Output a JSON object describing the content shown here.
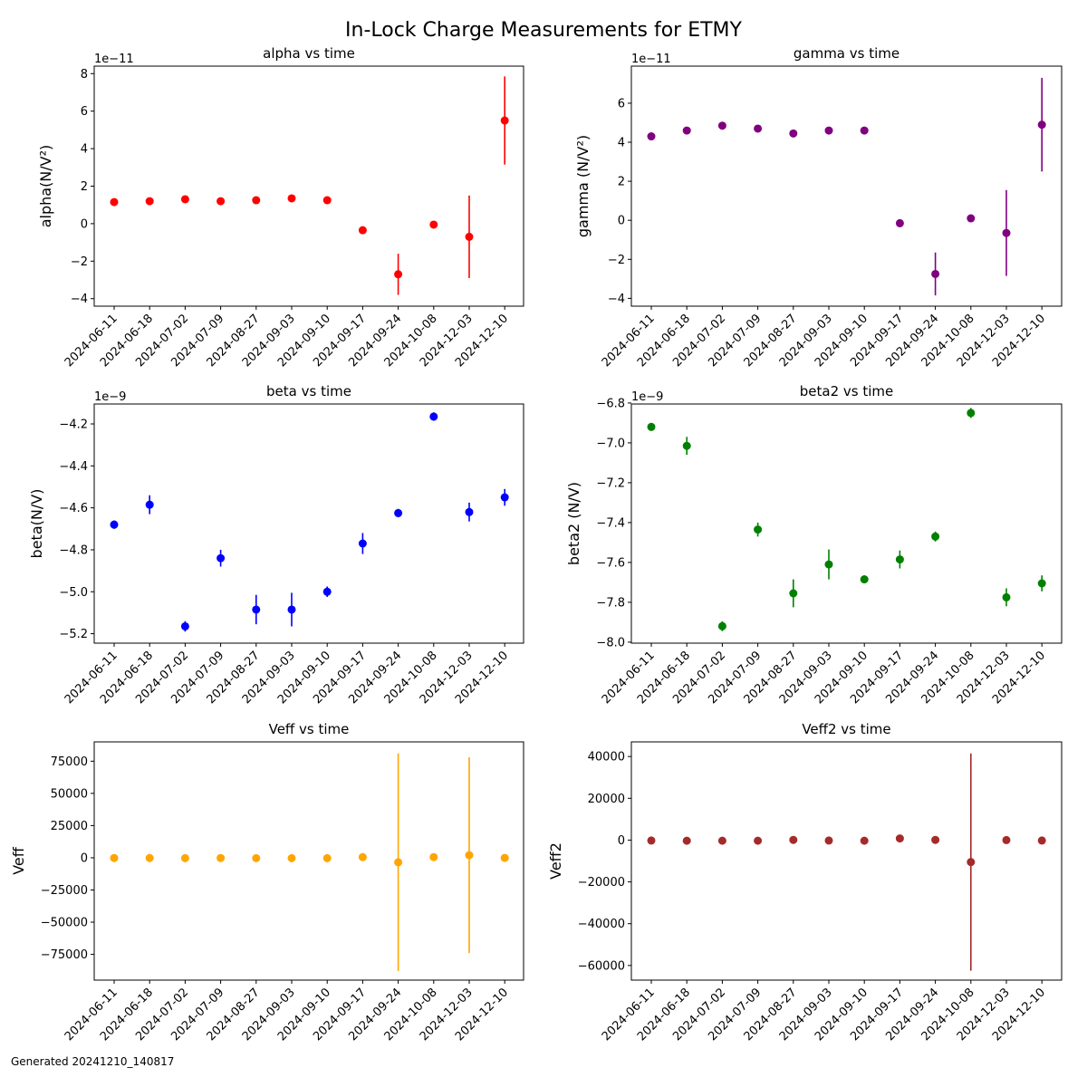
{
  "figure": {
    "title": "In-Lock Charge Measurements for ETMY",
    "footer": "Generated 20241210_140817"
  },
  "chart_data": [
    {
      "type": "scatter",
      "title": "alpha vs time",
      "ylabel": "alpha(N/V²)",
      "xlabel": "",
      "color": "#ff0000",
      "offset_text": "1e−11",
      "x": [
        "2024-06-11",
        "2024-06-18",
        "2024-07-02",
        "2024-07-09",
        "2024-08-27",
        "2024-09-03",
        "2024-09-10",
        "2024-09-17",
        "2024-09-24",
        "2024-10-08",
        "2024-12-03",
        "2024-12-10"
      ],
      "values": [
        1.15,
        1.2,
        1.3,
        1.2,
        1.25,
        1.35,
        1.25,
        -0.35,
        -2.7,
        -0.05,
        -0.7,
        5.5
      ],
      "errors": [
        0.05,
        0.05,
        0.05,
        0.05,
        0.05,
        0.05,
        0.05,
        0.15,
        1.1,
        0.1,
        2.2,
        2.35
      ],
      "ylim": [
        -4.4,
        8.4
      ],
      "yticks": [
        -4,
        -2,
        0,
        2,
        4,
        6,
        8
      ],
      "grid": false
    },
    {
      "type": "scatter",
      "title": "gamma vs time",
      "ylabel": "gamma (N/V²)",
      "xlabel": "",
      "color": "#800080",
      "offset_text": "1e−11",
      "x": [
        "2024-06-11",
        "2024-06-18",
        "2024-07-02",
        "2024-07-09",
        "2024-08-27",
        "2024-09-03",
        "2024-09-10",
        "2024-09-17",
        "2024-09-24",
        "2024-10-08",
        "2024-12-03",
        "2024-12-10"
      ],
      "values": [
        4.3,
        4.6,
        4.85,
        4.7,
        4.45,
        4.6,
        4.6,
        -0.15,
        -2.75,
        0.1,
        -0.65,
        4.9
      ],
      "errors": [
        0.05,
        0.05,
        0.05,
        0.05,
        0.05,
        0.05,
        0.05,
        0.2,
        1.1,
        0.1,
        2.2,
        2.4
      ],
      "ylim": [
        -4.4,
        7.9
      ],
      "yticks": [
        -4,
        -2,
        0,
        2,
        4,
        6
      ],
      "grid": false
    },
    {
      "type": "scatter",
      "title": "beta vs time",
      "ylabel": "beta(N/V)",
      "xlabel": "",
      "color": "#0000ff",
      "offset_text": "1e−9",
      "x": [
        "2024-06-11",
        "2024-06-18",
        "2024-07-02",
        "2024-07-09",
        "2024-08-27",
        "2024-09-03",
        "2024-09-10",
        "2024-09-17",
        "2024-09-24",
        "2024-10-08",
        "2024-12-03",
        "2024-12-10"
      ],
      "values": [
        -4.68,
        -4.585,
        -5.165,
        -4.84,
        -5.085,
        -5.085,
        -5.0,
        -4.77,
        -4.625,
        -4.165,
        -4.62,
        -4.55
      ],
      "errors": [
        0.02,
        0.045,
        0.025,
        0.04,
        0.07,
        0.08,
        0.025,
        0.05,
        0.02,
        0.02,
        0.045,
        0.04
      ],
      "ylim": [
        -5.245,
        -4.105
      ],
      "yticks": [
        -5.2,
        -5.0,
        -4.8,
        -4.6,
        -4.4,
        -4.2
      ],
      "ytick_labels": [
        "−5.2",
        "−5.0",
        "−4.8",
        "−4.6",
        "−4.4",
        "−4.2"
      ],
      "grid": false
    },
    {
      "type": "scatter",
      "title": "beta2 vs time",
      "ylabel": "beta2 (N/V)",
      "xlabel": "",
      "color": "#008000",
      "offset_text": "1e−9",
      "x": [
        "2024-06-11",
        "2024-06-18",
        "2024-07-02",
        "2024-07-09",
        "2024-08-27",
        "2024-09-03",
        "2024-09-10",
        "2024-09-17",
        "2024-09-24",
        "2024-10-08",
        "2024-12-03",
        "2024-12-10"
      ],
      "values": [
        -6.92,
        -7.015,
        -7.92,
        -7.435,
        -7.755,
        -7.61,
        -7.685,
        -7.585,
        -7.47,
        -6.85,
        -7.775,
        -7.705
      ],
      "errors": [
        0.02,
        0.045,
        0.025,
        0.035,
        0.07,
        0.075,
        0.02,
        0.045,
        0.025,
        0.025,
        0.045,
        0.04
      ],
      "ylim": [
        -8.005,
        -6.805
      ],
      "yticks": [
        -8.0,
        -7.8,
        -7.6,
        -7.4,
        -7.2,
        -7.0,
        -6.8
      ],
      "ytick_labels": [
        "−8.0",
        "−7.8",
        "−7.6",
        "−7.4",
        "−7.2",
        "−7.0",
        "−6.8"
      ],
      "grid": false
    },
    {
      "type": "scatter",
      "title": "Veff vs time",
      "ylabel": "Veff",
      "xlabel": "",
      "color": "#ffa500",
      "offset_text": "",
      "x": [
        "2024-06-11",
        "2024-06-18",
        "2024-07-02",
        "2024-07-09",
        "2024-08-27",
        "2024-09-03",
        "2024-09-10",
        "2024-09-17",
        "2024-09-24",
        "2024-10-08",
        "2024-12-03",
        "2024-12-10"
      ],
      "values": [
        -200,
        -200,
        -300,
        -200,
        -300,
        -300,
        -300,
        500,
        -3500,
        500,
        2000,
        -100
      ],
      "errors": [
        0,
        0,
        0,
        0,
        0,
        0,
        0,
        0,
        84500,
        0,
        76000,
        0
      ],
      "ylim": [
        -95000,
        90000
      ],
      "yticks": [
        -75000,
        -50000,
        -25000,
        0,
        25000,
        50000,
        75000
      ],
      "ytick_labels": [
        "−75000",
        "−50000",
        "−25000",
        "0",
        "25000",
        "50000",
        "75000"
      ],
      "grid": false
    },
    {
      "type": "scatter",
      "title": "Veff2 vs time",
      "ylabel": "Veff2",
      "xlabel": "",
      "color": "#a52a2a",
      "offset_text": "",
      "x": [
        "2024-06-11",
        "2024-06-18",
        "2024-07-02",
        "2024-07-09",
        "2024-08-27",
        "2024-09-03",
        "2024-09-10",
        "2024-09-17",
        "2024-09-24",
        "2024-10-08",
        "2024-12-03",
        "2024-12-10"
      ],
      "values": [
        -200,
        -300,
        -300,
        -300,
        100,
        -200,
        -300,
        800,
        100,
        -10500,
        0,
        -200
      ],
      "errors": [
        0,
        0,
        0,
        0,
        0,
        0,
        0,
        0,
        0,
        52000,
        0,
        0
      ],
      "ylim": [
        -67000,
        47000
      ],
      "yticks": [
        -60000,
        -40000,
        -20000,
        0,
        20000,
        40000
      ],
      "ytick_labels": [
        "−60000",
        "−40000",
        "−20000",
        "0",
        "20000",
        "40000"
      ],
      "grid": false
    }
  ]
}
